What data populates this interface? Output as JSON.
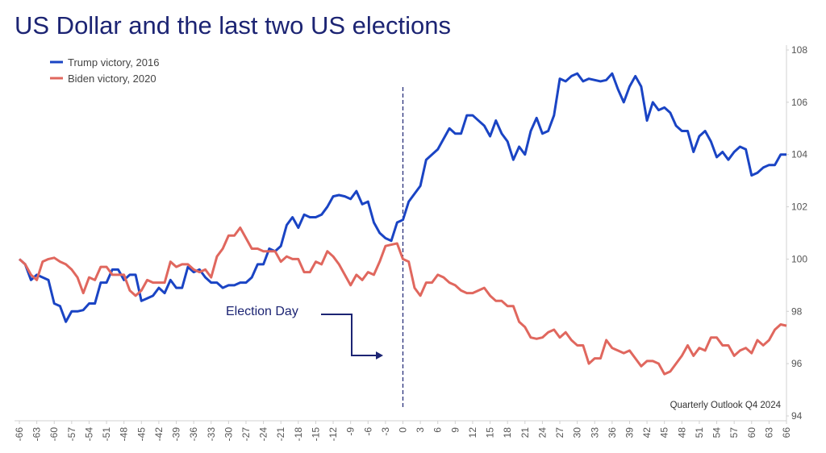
{
  "chart_data": {
    "type": "line",
    "title": "US Dollar and the last two US elections",
    "x": [
      -66,
      -65,
      -64,
      -63,
      -62,
      -61,
      -60,
      -59,
      -58,
      -57,
      -56,
      -55,
      -54,
      -53,
      -52,
      -51,
      -50,
      -49,
      -48,
      -47,
      -46,
      -45,
      -44,
      -43,
      -42,
      -41,
      -40,
      -39,
      -38,
      -37,
      -36,
      -35,
      -34,
      -33,
      -32,
      -31,
      -30,
      -29,
      -28,
      -27,
      -26,
      -25,
      -24,
      -23,
      -22,
      -21,
      -20,
      -19,
      -18,
      -17,
      -16,
      -15,
      -14,
      -13,
      -12,
      -11,
      -10,
      -9,
      -8,
      -7,
      -6,
      -5,
      -4,
      -3,
      -2,
      -1,
      0,
      1,
      2,
      3,
      4,
      5,
      6,
      7,
      8,
      9,
      10,
      11,
      12,
      13,
      14,
      15,
      16,
      17,
      18,
      19,
      20,
      21,
      22,
      23,
      24,
      25,
      26,
      27,
      28,
      29,
      30,
      31,
      32,
      33,
      34,
      35,
      36,
      37,
      38,
      39,
      40,
      41,
      42,
      43,
      44,
      45,
      46,
      47,
      48,
      49,
      50,
      51,
      52,
      53,
      54,
      55,
      56,
      57,
      58,
      59,
      60,
      61,
      62,
      63,
      64,
      65,
      66
    ],
    "series": [
      {
        "name": "Trump victory, 2016",
        "color": "#1a44c4",
        "values": [
          100,
          99.8,
          99.2,
          99.4,
          99.3,
          99.2,
          98.3,
          98.2,
          97.6,
          98.0,
          98.0,
          98.05,
          98.3,
          98.3,
          99.1,
          99.1,
          99.6,
          99.6,
          99.2,
          99.4,
          99.4,
          98.4,
          98.5,
          98.6,
          98.9,
          98.7,
          99.2,
          98.9,
          98.9,
          99.7,
          99.5,
          99.6,
          99.3,
          99.1,
          99.1,
          98.9,
          99.0,
          99.0,
          99.1,
          99.1,
          99.3,
          99.8,
          99.8,
          100.4,
          100.3,
          100.5,
          101.3,
          101.6,
          101.2,
          101.7,
          101.6,
          101.6,
          101.7,
          102.0,
          102.4,
          102.45,
          102.4,
          102.3,
          102.6,
          102.1,
          102.2,
          101.4,
          101.0,
          100.8,
          100.7,
          101.4,
          101.5,
          102.2,
          102.5,
          102.8,
          103.8,
          104.0,
          104.2,
          104.6,
          105.0,
          104.8,
          104.8,
          105.5,
          105.5,
          105.3,
          105.1,
          104.7,
          105.3,
          104.8,
          104.5,
          103.8,
          104.3,
          104.0,
          104.9,
          105.4,
          104.8,
          104.9,
          105.5,
          106.9,
          106.8,
          107.0,
          107.1,
          106.8,
          106.9,
          106.85,
          106.8,
          106.85,
          107.1,
          106.5,
          106.0,
          106.6,
          107.0,
          106.6,
          105.3,
          106.0,
          105.7,
          105.8,
          105.6,
          105.1,
          104.9,
          104.9,
          104.1,
          104.7,
          104.9,
          104.5,
          103.9,
          104.1,
          103.8,
          104.1,
          104.3,
          104.2,
          103.2,
          103.3,
          103.5,
          103.6,
          103.6,
          104.0,
          104.0
        ]
      },
      {
        "name": "Biden victory, 2020",
        "color": "#e0675e",
        "values": [
          100,
          99.8,
          99.4,
          99.2,
          99.9,
          100.0,
          100.05,
          99.9,
          99.8,
          99.6,
          99.3,
          98.7,
          99.3,
          99.2,
          99.7,
          99.7,
          99.4,
          99.4,
          99.4,
          98.8,
          98.6,
          98.8,
          99.2,
          99.1,
          99.1,
          99.1,
          99.9,
          99.7,
          99.8,
          99.8,
          99.6,
          99.5,
          99.6,
          99.3,
          100.1,
          100.4,
          100.9,
          100.9,
          101.2,
          100.8,
          100.4,
          100.4,
          100.3,
          100.3,
          100.3,
          99.9,
          100.1,
          100.0,
          100.0,
          99.5,
          99.5,
          99.9,
          99.8,
          100.3,
          100.1,
          99.8,
          99.4,
          99.0,
          99.4,
          99.2,
          99.5,
          99.4,
          99.9,
          100.5,
          100.55,
          100.6,
          100.0,
          99.9,
          98.9,
          98.6,
          99.1,
          99.1,
          99.4,
          99.3,
          99.1,
          99.0,
          98.8,
          98.7,
          98.7,
          98.8,
          98.9,
          98.6,
          98.4,
          98.4,
          98.2,
          98.2,
          97.6,
          97.4,
          97.0,
          96.95,
          97.0,
          97.2,
          97.3,
          97.0,
          97.2,
          96.9,
          96.7,
          96.7,
          96.0,
          96.2,
          96.2,
          96.9,
          96.6,
          96.5,
          96.4,
          96.5,
          96.2,
          95.9,
          96.1,
          96.1,
          96.0,
          95.6,
          95.7,
          96.0,
          96.3,
          96.7,
          96.3,
          96.6,
          96.5,
          97.0,
          97.0,
          96.7,
          96.7,
          96.3,
          96.5,
          96.6,
          96.4,
          96.9,
          96.7,
          96.9,
          97.3,
          97.5,
          97.45
        ]
      }
    ],
    "xlim": [
      -66,
      66
    ],
    "xticks": [
      -66,
      -63,
      -60,
      -57,
      -54,
      -51,
      -48,
      -45,
      -42,
      -39,
      -36,
      -33,
      -30,
      -27,
      -24,
      -21,
      -18,
      -15,
      -12,
      -9,
      -6,
      -3,
      0,
      3,
      6,
      9,
      12,
      15,
      18,
      21,
      24,
      27,
      30,
      33,
      36,
      39,
      42,
      45,
      48,
      51,
      54,
      57,
      60,
      63,
      66
    ],
    "ylim": [
      94,
      108
    ],
    "yticks": [
      94,
      96,
      98,
      100,
      102,
      104,
      106,
      108
    ],
    "y_axis_side": "right",
    "grid": false,
    "legend": "top-left",
    "vline_x": 0,
    "annotations": [
      "Election Day",
      "Quarterly Outlook Q4 2024"
    ]
  }
}
